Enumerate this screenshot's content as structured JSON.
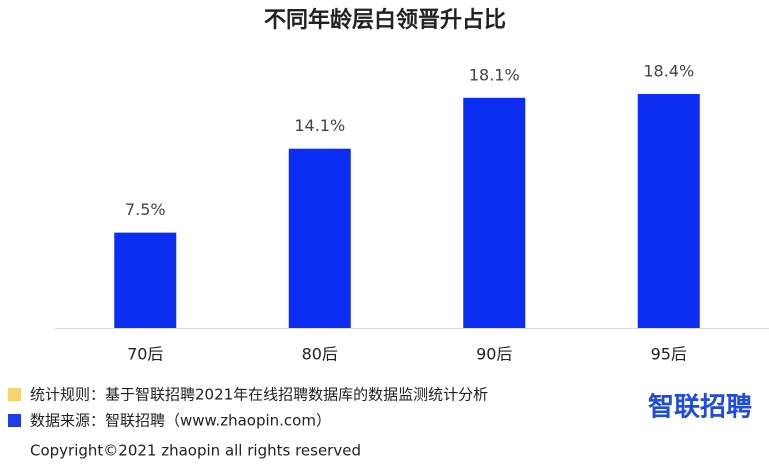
{
  "chart_data": {
    "type": "bar",
    "title": "不同年龄层白领晋升占比",
    "categories": [
      "70后",
      "80后",
      "90后",
      "95后"
    ],
    "values": [
      7.5,
      14.1,
      18.1,
      18.4
    ],
    "value_labels": [
      "7.5%",
      "14.1%",
      "18.1%",
      "18.4%"
    ],
    "color": "#0b2ef2"
  },
  "notes": [
    {
      "text": "统计规则：基于智联招聘2021年在线招聘数据库的数据监测统计分析",
      "color": "#f7d36e"
    },
    {
      "text": "数据来源：智联招聘（www.zhaopin.com）",
      "color": "#1f3ce8"
    }
  ],
  "logo": "智联招聘",
  "copyright": "Copyright©2021 zhaopin all rights reserved"
}
